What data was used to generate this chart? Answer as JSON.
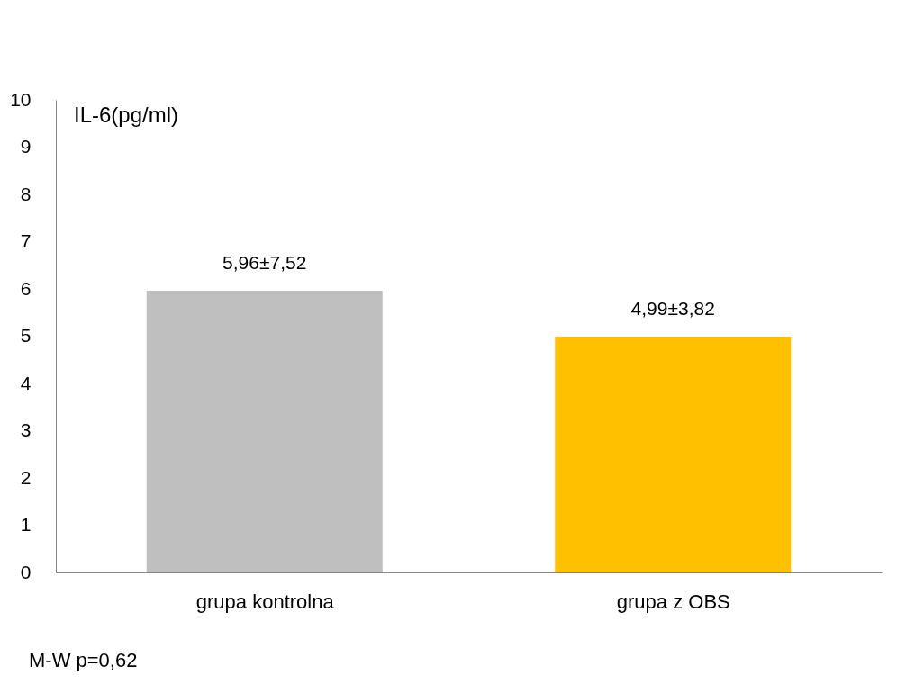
{
  "chart_data": {
    "type": "bar",
    "ylabel": "IL-6(pg/ml)",
    "categories": [
      "grupa kontrolna",
      "grupa z OBS"
    ],
    "values": [
      5.96,
      4.99
    ],
    "value_labels": [
      "5,96±7,52",
      "4,99±3,82"
    ],
    "colors": [
      "#bfbfbf",
      "#ffc000"
    ],
    "ylim": [
      0,
      10
    ],
    "yticks": [
      0,
      1,
      2,
      3,
      4,
      5,
      6,
      7,
      8,
      9,
      10
    ],
    "grid": false,
    "annotations": [
      "M-W  p=0,62"
    ]
  }
}
